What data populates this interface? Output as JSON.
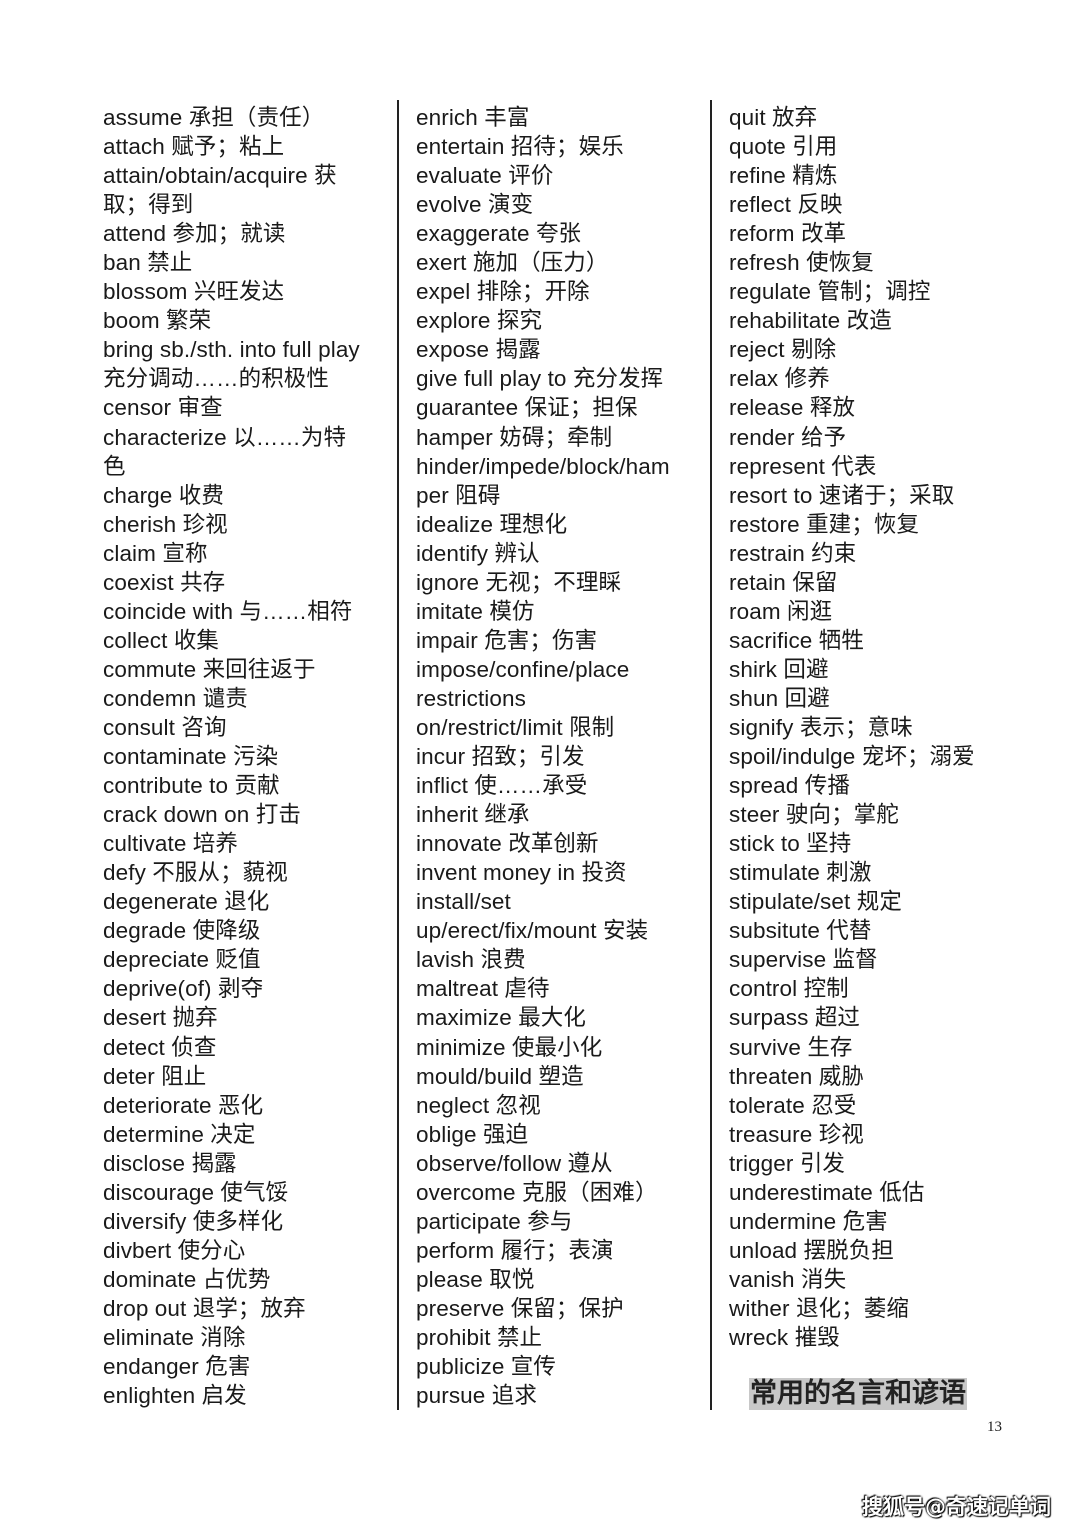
{
  "columns": [
    [
      "assume 承担（责任）",
      "attach 赋予；粘上",
      "attain/obtain/acquire 获",
      "取；得到",
      "attend 参加；就读",
      "ban 禁止",
      "blossom 兴旺发达",
      "boom 繁荣",
      "bring sb./sth. into full play",
      "充分调动……的积极性",
      "censor 审查",
      "characterize 以……为特",
      "色",
      "charge 收费",
      "cherish 珍视",
      "claim 宣称",
      "coexist 共存",
      "coincide with 与……相符",
      "collect 收集",
      "commute 来回往返于",
      "condemn 谴责",
      "consult 咨询",
      "contaminate 污染",
      "contribute to 贡献",
      "crack down on 打击",
      "cultivate 培养",
      "defy 不服从；藐视",
      "degenerate 退化",
      "degrade 使降级",
      "depreciate 贬值",
      "deprive(of) 剥夺",
      "desert 抛弃",
      "detect 侦查",
      "deter 阻止",
      "deteriorate 恶化",
      "determine 决定",
      "disclose 揭露",
      "discourage 使气馁",
      "diversify 使多样化",
      "divbert 使分心",
      "dominate 占优势",
      "drop out 退学；放弃",
      "eliminate 消除",
      "endanger 危害",
      "enlighten 启发"
    ],
    [
      "enrich 丰富",
      "entertain 招待；娱乐",
      "evaluate 评价",
      "evolve 演变",
      "exaggerate 夸张",
      "exert 施加（压力）",
      "expel 排除；开除",
      "explore 探究",
      "expose 揭露",
      "give full play to 充分发挥",
      "guarantee 保证；担保",
      "hamper 妨碍；牵制",
      "hinder/impede/block/ham",
      "per 阻碍",
      "idealize 理想化",
      "identify 辨认",
      "ignore 无视；不理睬",
      "imitate 模仿",
      "impair 危害；伤害",
      "impose/confine/place",
      "restrictions",
      "on/restrict/limit 限制",
      "incur 招致；引发",
      "inflict 使……承受",
      "inherit 继承",
      "innovate 改革创新",
      "invent money in 投资",
      "install/set",
      "up/erect/fix/mount 安装",
      "lavish 浪费",
      "maltreat 虐待",
      "maximize 最大化",
      "minimize 使最小化",
      "mould/build 塑造",
      "neglect 忽视",
      "oblige 强迫",
      "observe/follow 遵从",
      "overcome 克服（困难）",
      "participate 参与",
      "perform 履行；表演",
      "please 取悦",
      "preserve 保留；保护",
      "prohibit 禁止",
      "publicize 宣传",
      "pursue 追求"
    ],
    [
      "quit 放弃",
      "quote 引用",
      "refine 精炼",
      "reflect 反映",
      "reform 改革",
      "refresh 使恢复",
      "regulate 管制；调控",
      "rehabilitate 改造",
      "reject 剔除",
      "relax 修养",
      "release 释放",
      "render 给予",
      "represent 代表",
      "resort to 速诸于；采取",
      "restore 重建；恢复",
      "restrain 约束",
      "retain 保留",
      "roam 闲逛",
      "sacrifice 牺牲",
      "shirk 回避",
      "shun 回避",
      "signify 表示；意味",
      "spoil/indulge 宠坏；溺爱",
      "spread 传播",
      "steer 驶向；掌舵",
      "stick to 坚持",
      "stimulate 刺激",
      "stipulate/set 规定",
      "subsitute 代替",
      "supervise 监督",
      "control 控制",
      "surpass 超过",
      "survive 生存",
      "threaten 威胁",
      "tolerate 忍受",
      "treasure 珍视",
      "trigger 引发",
      "underestimate 低估",
      "undermine 危害",
      "unload 摆脱负担",
      "vanish 消失",
      "wither 退化；萎缩",
      "wreck 摧毁"
    ]
  ],
  "section_heading": "常用的名言和谚语",
  "page_number": "13",
  "watermark": "搜狐号@奇速记单词"
}
